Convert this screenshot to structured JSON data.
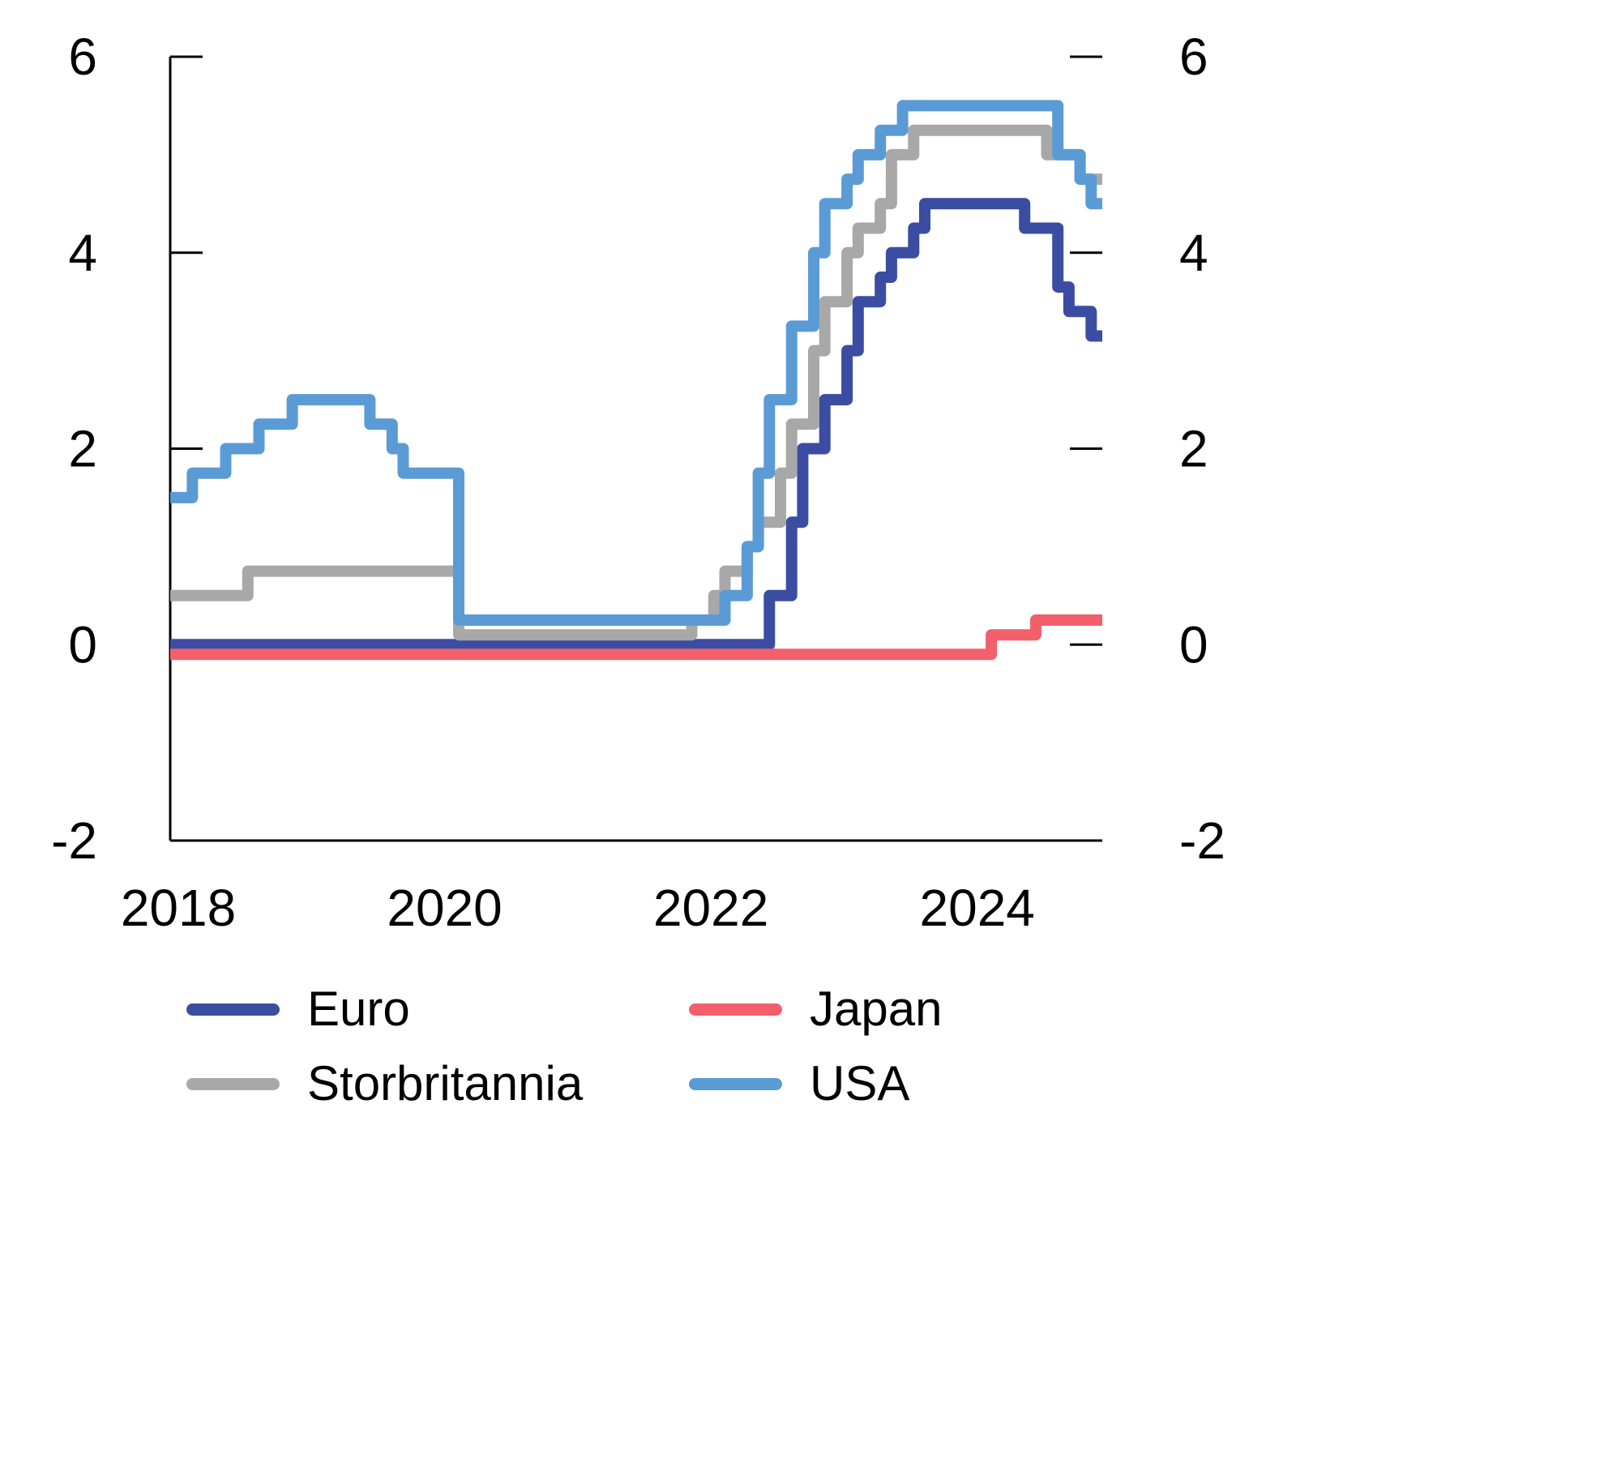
{
  "chart_data": {
    "type": "line",
    "title": "",
    "x_start_year": 2018,
    "points_per_year": 12,
    "xlim": [
      2018,
      2025
    ],
    "ylim": [
      -2,
      6
    ],
    "x_tick_values": [
      2018,
      2020,
      2022,
      2024
    ],
    "x_tick_labels": [
      "2018",
      "2020",
      "2022",
      "2024"
    ],
    "y_ticks": [
      -2,
      0,
      2,
      4,
      6
    ],
    "grid": false,
    "legend_position": "bottom",
    "axis_color": "#000000",
    "line_width": 14,
    "series": [
      {
        "name": "Euro",
        "color": "#3b4da2",
        "values": [
          0,
          0,
          0,
          0,
          0,
          0,
          0,
          0,
          0,
          0,
          0,
          0,
          0,
          0,
          0,
          0,
          0,
          0,
          0,
          0,
          0,
          0,
          0,
          0,
          0,
          0,
          0,
          0,
          0,
          0,
          0,
          0,
          0,
          0,
          0,
          0,
          0,
          0,
          0,
          0,
          0,
          0,
          0,
          0,
          0,
          0,
          0,
          0,
          0,
          0,
          0,
          0,
          0,
          0,
          0.5,
          0.5,
          1.25,
          2.0,
          2.0,
          2.5,
          2.5,
          3.0,
          3.5,
          3.5,
          3.75,
          4.0,
          4.0,
          4.25,
          4.5,
          4.5,
          4.5,
          4.5,
          4.5,
          4.5,
          4.5,
          4.5,
          4.5,
          4.25,
          4.25,
          4.25,
          3.65,
          3.4,
          3.4,
          3.15,
          3.15
        ]
      },
      {
        "name": "Japan",
        "color": "#f2606b",
        "values": [
          -0.1,
          -0.1,
          -0.1,
          -0.1,
          -0.1,
          -0.1,
          -0.1,
          -0.1,
          -0.1,
          -0.1,
          -0.1,
          -0.1,
          -0.1,
          -0.1,
          -0.1,
          -0.1,
          -0.1,
          -0.1,
          -0.1,
          -0.1,
          -0.1,
          -0.1,
          -0.1,
          -0.1,
          -0.1,
          -0.1,
          -0.1,
          -0.1,
          -0.1,
          -0.1,
          -0.1,
          -0.1,
          -0.1,
          -0.1,
          -0.1,
          -0.1,
          -0.1,
          -0.1,
          -0.1,
          -0.1,
          -0.1,
          -0.1,
          -0.1,
          -0.1,
          -0.1,
          -0.1,
          -0.1,
          -0.1,
          -0.1,
          -0.1,
          -0.1,
          -0.1,
          -0.1,
          -0.1,
          -0.1,
          -0.1,
          -0.1,
          -0.1,
          -0.1,
          -0.1,
          -0.1,
          -0.1,
          -0.1,
          -0.1,
          -0.1,
          -0.1,
          -0.1,
          -0.1,
          -0.1,
          -0.1,
          -0.1,
          -0.1,
          -0.1,
          -0.1,
          0.1,
          0.1,
          0.1,
          0.1,
          0.25,
          0.25,
          0.25,
          0.25,
          0.25,
          0.25,
          0.25
        ]
      },
      {
        "name": "Storbritannia",
        "color": "#a8a8a8",
        "values": [
          0.5,
          0.5,
          0.5,
          0.5,
          0.5,
          0.5,
          0.5,
          0.75,
          0.75,
          0.75,
          0.75,
          0.75,
          0.75,
          0.75,
          0.75,
          0.75,
          0.75,
          0.75,
          0.75,
          0.75,
          0.75,
          0.75,
          0.75,
          0.75,
          0.75,
          0.75,
          0.1,
          0.1,
          0.1,
          0.1,
          0.1,
          0.1,
          0.1,
          0.1,
          0.1,
          0.1,
          0.1,
          0.1,
          0.1,
          0.1,
          0.1,
          0.1,
          0.1,
          0.1,
          0.1,
          0.1,
          0.1,
          0.25,
          0.25,
          0.5,
          0.75,
          0.75,
          1.0,
          1.25,
          1.25,
          1.75,
          2.25,
          2.25,
          3.0,
          3.5,
          3.5,
          4.0,
          4.25,
          4.25,
          4.5,
          5.0,
          5.0,
          5.25,
          5.25,
          5.25,
          5.25,
          5.25,
          5.25,
          5.25,
          5.25,
          5.25,
          5.25,
          5.25,
          5.25,
          5.0,
          5.0,
          5.0,
          4.75,
          4.75,
          4.75
        ]
      },
      {
        "name": "USA",
        "color": "#5b9bd5",
        "values": [
          1.5,
          1.5,
          1.75,
          1.75,
          1.75,
          2.0,
          2.0,
          2.0,
          2.25,
          2.25,
          2.25,
          2.5,
          2.5,
          2.5,
          2.5,
          2.5,
          2.5,
          2.5,
          2.25,
          2.25,
          2.0,
          1.75,
          1.75,
          1.75,
          1.75,
          1.75,
          0.25,
          0.25,
          0.25,
          0.25,
          0.25,
          0.25,
          0.25,
          0.25,
          0.25,
          0.25,
          0.25,
          0.25,
          0.25,
          0.25,
          0.25,
          0.25,
          0.25,
          0.25,
          0.25,
          0.25,
          0.25,
          0.25,
          0.25,
          0.25,
          0.5,
          0.5,
          1.0,
          1.75,
          2.5,
          2.5,
          3.25,
          3.25,
          4.0,
          4.5,
          4.5,
          4.75,
          5.0,
          5.0,
          5.25,
          5.25,
          5.5,
          5.5,
          5.5,
          5.5,
          5.5,
          5.5,
          5.5,
          5.5,
          5.5,
          5.5,
          5.5,
          5.5,
          5.5,
          5.5,
          5.0,
          5.0,
          4.75,
          4.5,
          4.5
        ]
      }
    ],
    "legend_columns": [
      [
        "Euro",
        "Storbritannia"
      ],
      [
        "Japan",
        "USA"
      ]
    ]
  }
}
